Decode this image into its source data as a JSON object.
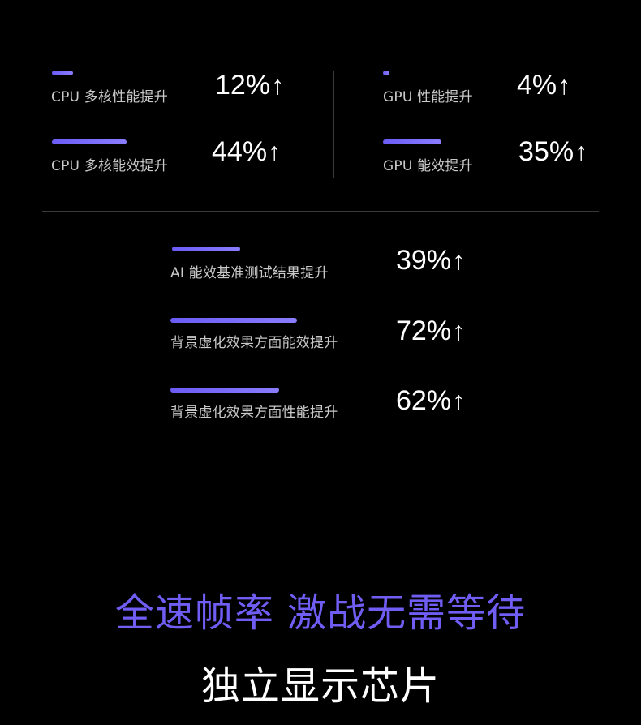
{
  "stats": [
    {
      "label": "CPU 多核性能提升",
      "value": "12%",
      "arrow": "↑",
      "level": 0.12
    },
    {
      "label": "CPU 多核能效提升",
      "value": "44%",
      "arrow": "↑",
      "level": 0.44
    },
    {
      "label": "GPU 性能提升",
      "value": "4%",
      "arrow": "↑",
      "level": 0.04
    },
    {
      "label": "GPU 能效提升",
      "value": "35%",
      "arrow": "↑",
      "level": 0.35
    },
    {
      "label": "AI 能效基准测试结果提升",
      "value": "39%",
      "arrow": "↑",
      "level": 0.39
    },
    {
      "label": "背景虚化效果方面能效提升",
      "value": "72%",
      "arrow": "↑",
      "level": 0.72
    },
    {
      "label": "背景虚化效果方面性能提升",
      "value": "62%",
      "arrow": "↑",
      "level": 0.62
    }
  ],
  "headline": "全速帧率 激战无需等待",
  "subheadline": "独立显示芯片",
  "colors": {
    "accent": "#6f5df4",
    "background": "#000000",
    "divider": "#3a3a3a"
  }
}
